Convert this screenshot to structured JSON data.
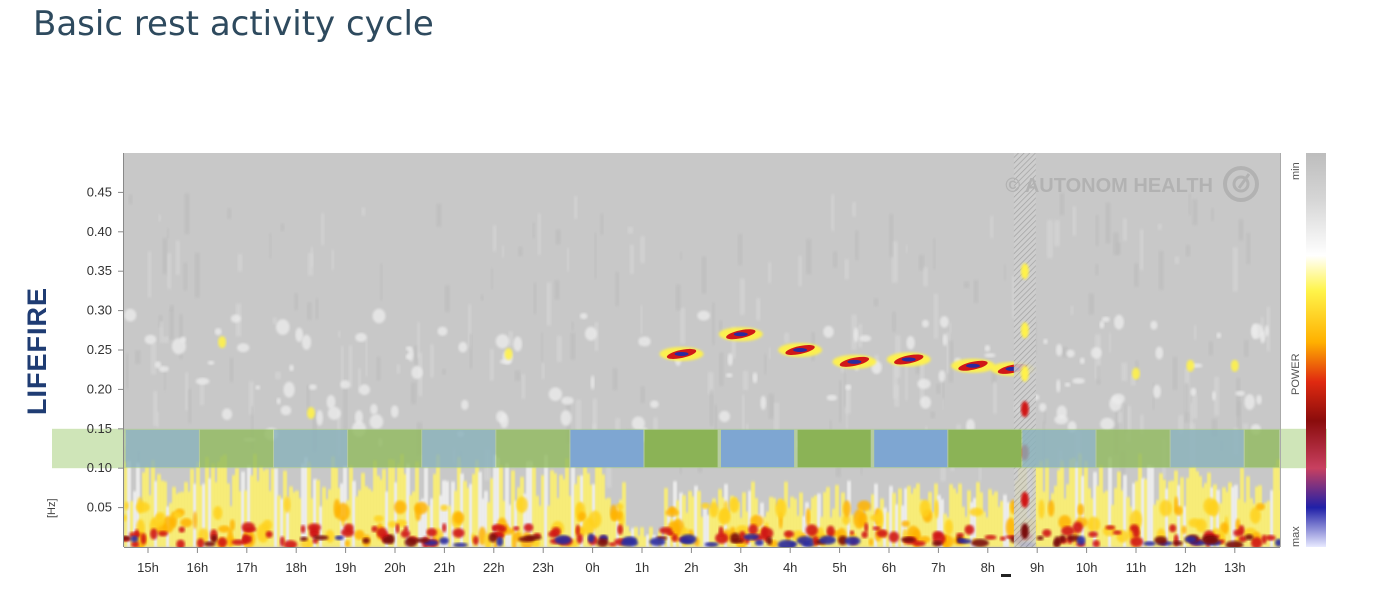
{
  "page": {
    "title": "Basic rest activity cycle",
    "side_label": "LIFEFIRE"
  },
  "colors": {
    "background_gray": "#c8c8c8",
    "band_blue": "#7ea6d2",
    "band_green": "#8bb356",
    "band_overlay": "#a8cf7e",
    "hot_red": "#d01818",
    "hot_yellow": "#fff24a",
    "deep_blue": "#2a2a9e",
    "dark_red": "#7a1010"
  },
  "chart_data": {
    "type": "heatmap",
    "title": "",
    "ylabel": "[Hz]",
    "ylim": [
      0,
      0.5
    ],
    "y_ticks": [
      "0.45",
      "0.40",
      "0.35",
      "0.30",
      "0.25",
      "0.20",
      "0.15",
      "0.10",
      "0.05"
    ],
    "y_tick_values": [
      0.45,
      0.4,
      0.35,
      0.3,
      0.25,
      0.2,
      0.15,
      0.1,
      0.05
    ],
    "x_ticks": [
      "15h",
      "16h",
      "17h",
      "18h",
      "19h",
      "20h",
      "21h",
      "22h",
      "23h",
      "0h",
      "1h",
      "2h",
      "3h",
      "4h",
      "5h",
      "6h",
      "7h",
      "8h",
      "9h",
      "10h",
      "11h",
      "12h",
      "13h"
    ],
    "x_range_hours": [
      14.5,
      38.0
    ],
    "hf_band_hz": [
      0.1,
      0.15
    ],
    "cycle_blocks": [
      {
        "color": "blue",
        "start": 14.55,
        "end": 16.05,
        "saturated": false
      },
      {
        "color": "green",
        "start": 16.05,
        "end": 17.55,
        "saturated": false
      },
      {
        "color": "blue",
        "start": 17.55,
        "end": 19.05,
        "saturated": false
      },
      {
        "color": "green",
        "start": 19.05,
        "end": 20.55,
        "saturated": false
      },
      {
        "color": "blue",
        "start": 20.55,
        "end": 22.05,
        "saturated": false
      },
      {
        "color": "green",
        "start": 22.05,
        "end": 23.55,
        "saturated": false
      },
      {
        "color": "blue",
        "start": 23.55,
        "end": 25.05,
        "saturated": true
      },
      {
        "color": "green",
        "start": 25.05,
        "end": 26.55,
        "saturated": true
      },
      {
        "color": "blue",
        "start": 26.6,
        "end": 28.1,
        "saturated": true
      },
      {
        "color": "green",
        "start": 28.15,
        "end": 29.65,
        "saturated": true
      },
      {
        "color": "blue",
        "start": 29.7,
        "end": 31.2,
        "saturated": true
      },
      {
        "color": "green",
        "start": 31.2,
        "end": 32.7,
        "saturated": true
      },
      {
        "color": "blue",
        "start": 32.7,
        "end": 34.2,
        "saturated": false
      },
      {
        "color": "green",
        "start": 34.2,
        "end": 35.7,
        "saturated": false
      },
      {
        "color": "blue",
        "start": 35.7,
        "end": 37.2,
        "saturated": false
      },
      {
        "color": "green",
        "start": 37.2,
        "end": 38.0,
        "saturated": false
      }
    ],
    "respiratory_peaks_hz": [
      {
        "t": 25.8,
        "f": 0.245
      },
      {
        "t": 27.0,
        "f": 0.27
      },
      {
        "t": 28.2,
        "f": 0.25
      },
      {
        "t": 29.3,
        "f": 0.235
      },
      {
        "t": 30.4,
        "f": 0.238
      },
      {
        "t": 31.7,
        "f": 0.23
      },
      {
        "t": 32.5,
        "f": 0.226
      }
    ],
    "artifact_time_hours": 32.75,
    "color_scale": {
      "top": "min",
      "middle": "POWER",
      "bottom": "max"
    },
    "watermark": "© AUTONOM HEALTH"
  }
}
